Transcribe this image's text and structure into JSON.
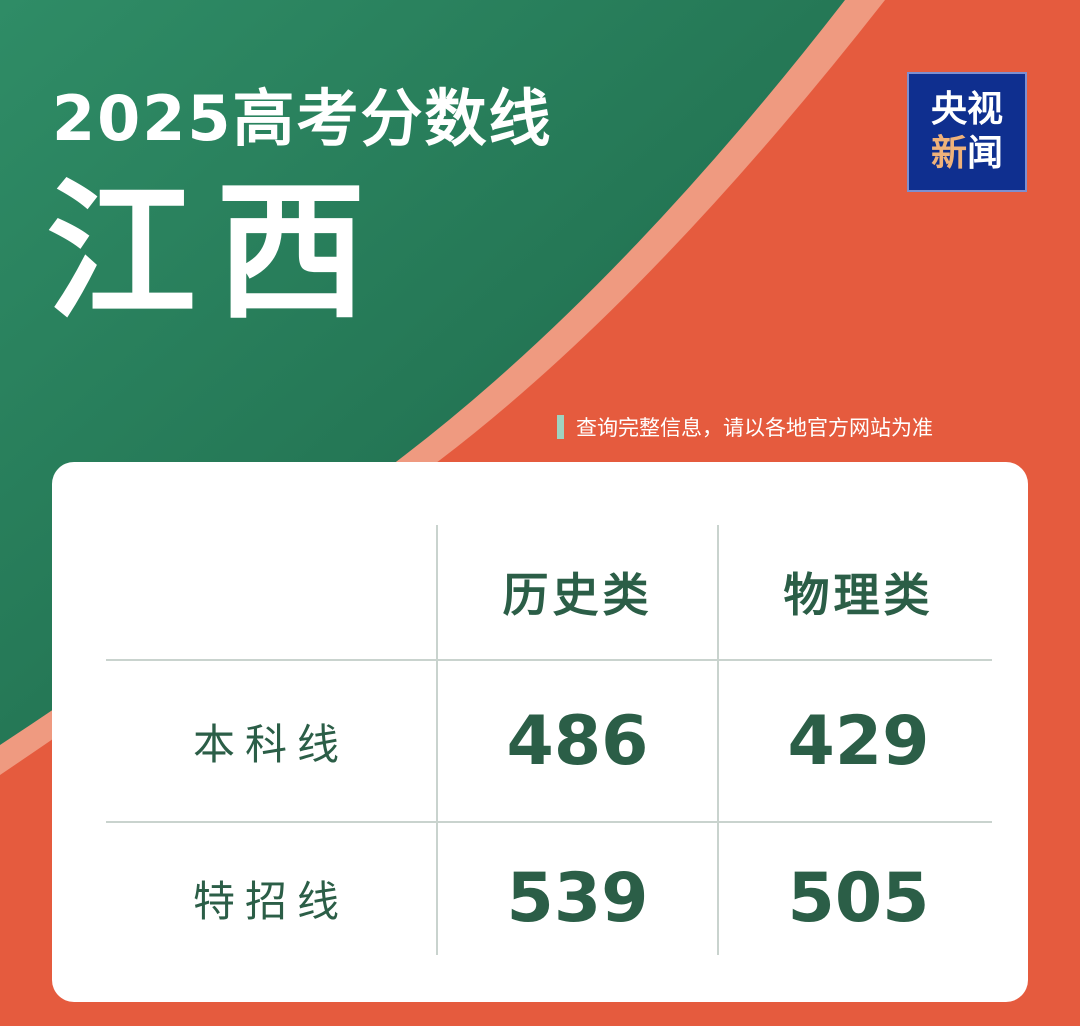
{
  "header": {
    "title": "2025高考分数线",
    "province": "江西"
  },
  "logo": {
    "line1": "央视",
    "line2a": "新",
    "line2b": "闻"
  },
  "note": "查询完整信息，请以各地官方网站为准",
  "colors": {
    "green": "#237453",
    "orange": "#e55b3e",
    "stripe": "#ef9a80",
    "text": "#2b5e47",
    "logo_bg": "#0f2f8f"
  },
  "table": {
    "columns": [
      "历史类",
      "物理类"
    ],
    "rows": [
      {
        "label": "本科线",
        "values": [
          "486",
          "429"
        ]
      },
      {
        "label": "特招线",
        "values": [
          "539",
          "505"
        ]
      }
    ]
  }
}
